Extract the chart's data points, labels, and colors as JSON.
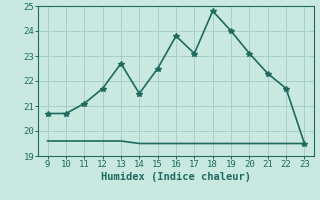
{
  "x": [
    9,
    10,
    11,
    12,
    13,
    14,
    15,
    16,
    17,
    18,
    19,
    20,
    21,
    22,
    23
  ],
  "y_upper": [
    20.7,
    20.7,
    21.1,
    21.7,
    22.7,
    21.5,
    22.5,
    23.8,
    23.1,
    24.8,
    24.0,
    23.1,
    22.3,
    21.7,
    19.5
  ],
  "y_lower": [
    19.6,
    19.6,
    19.6,
    19.6,
    19.6,
    19.5,
    19.5,
    19.5,
    19.5,
    19.5,
    19.5,
    19.5,
    19.5,
    19.5,
    19.5
  ],
  "line_color": "#1e6b5e",
  "bg_color": "#c8e8e0",
  "grid_color": "#a8cec8",
  "xlabel": "Humidex (Indice chaleur)",
  "ylim": [
    19,
    25
  ],
  "xlim": [
    8.5,
    23.5
  ],
  "yticks": [
    19,
    20,
    21,
    22,
    23,
    24,
    25
  ],
  "xticks": [
    9,
    10,
    11,
    12,
    13,
    14,
    15,
    16,
    17,
    18,
    19,
    20,
    21,
    22,
    23
  ],
  "font_color": "#1e6b5e",
  "marker": "*",
  "markersize": 4,
  "linewidth": 1.2,
  "tick_fontsize": 6.5,
  "xlabel_fontsize": 7.5
}
